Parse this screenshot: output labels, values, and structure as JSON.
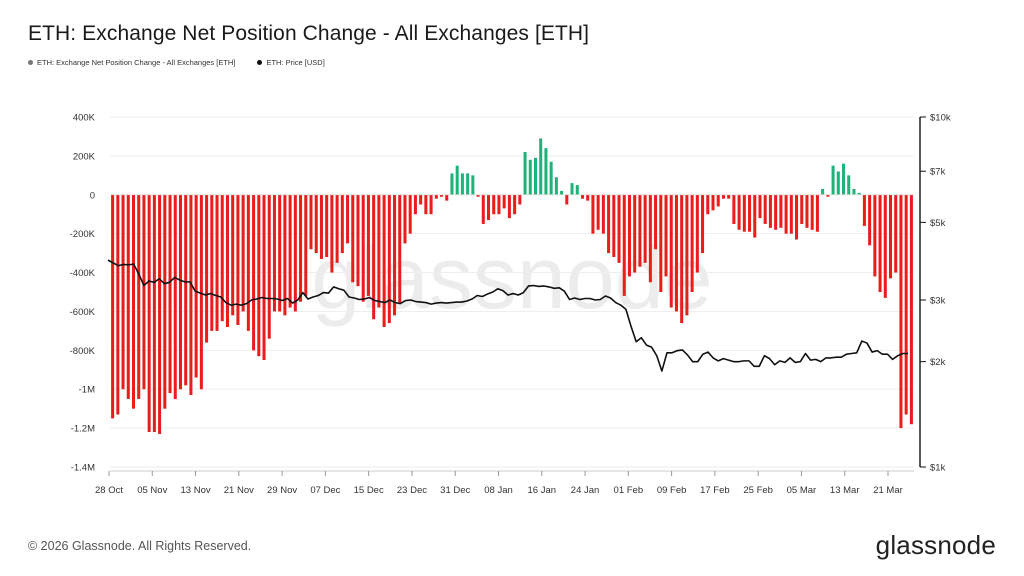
{
  "title": "ETH: Exchange Net Position Change - All Exchanges [ETH]",
  "legend": {
    "net_label": "ETH: Exchange Net Position Change - All Exchanges [ETH]",
    "price_label": "ETH: Price [USD]"
  },
  "footer": "© 2026 Glassnode. All Rights Reserved.",
  "logo": "glassnode",
  "watermark": "glassnode",
  "colors": {
    "positive": "#1fb37a",
    "negative": "#ea1d1d",
    "price_line": "#111111"
  },
  "chart_data": {
    "type": "bar",
    "title": "ETH: Exchange Net Position Change - All Exchanges [ETH]",
    "x_tick_labels": [
      "28 Oct",
      "05 Nov",
      "13 Nov",
      "21 Nov",
      "29 Nov",
      "07 Dec",
      "15 Dec",
      "23 Dec",
      "31 Dec",
      "08 Jan",
      "16 Jan",
      "24 Jan",
      "01 Feb",
      "09 Feb",
      "17 Feb",
      "25 Feb",
      "05 Mar",
      "13 Mar",
      "21 Mar"
    ],
    "y_left": {
      "ticks": [
        400000,
        200000,
        0,
        -200000,
        -400000,
        -600000,
        -800000,
        -1000000,
        -1200000,
        -1400000
      ],
      "tick_labels": [
        "400K",
        "200K",
        "0",
        "-200K",
        "-400K",
        "-600K",
        "-800K",
        "-1M",
        "-1.2M",
        "-1.4M"
      ],
      "range": [
        -1400000,
        400000
      ]
    },
    "y_right": {
      "scale": "log",
      "ticks": [
        1000,
        2000,
        3000,
        5000,
        7000,
        10000
      ],
      "tick_labels": [
        "$1k",
        "$2k",
        "$3k",
        "$5k",
        "$7k",
        "$10k"
      ],
      "range": [
        1000,
        10000
      ]
    },
    "grid": true,
    "legend_position": "top-left",
    "series": [
      {
        "name": "ETH: Exchange Net Position Change - All Exchanges [ETH]",
        "type": "bar",
        "values": [
          -1150000,
          -1130000,
          -1000000,
          -1050000,
          -1100000,
          -1050000,
          -1000000,
          -1220000,
          -1220000,
          -1230000,
          -1100000,
          -1020000,
          -1050000,
          -1000000,
          -980000,
          -1030000,
          -940000,
          -1000000,
          -760000,
          -700000,
          -700000,
          -650000,
          -680000,
          -620000,
          -670000,
          -600000,
          -700000,
          -800000,
          -830000,
          -850000,
          -740000,
          -600000,
          -600000,
          -620000,
          -580000,
          -600000,
          -550000,
          -520000,
          -280000,
          -300000,
          -330000,
          -320000,
          -400000,
          -350000,
          -300000,
          -250000,
          -450000,
          -470000,
          -550000,
          -520000,
          -640000,
          -580000,
          -680000,
          -660000,
          -620000,
          -560000,
          -250000,
          -200000,
          -100000,
          -50000,
          -100000,
          -100000,
          -20000,
          -10000,
          -30000,
          110000,
          150000,
          110000,
          110000,
          100000,
          -10000,
          -150000,
          -130000,
          -100000,
          -100000,
          -70000,
          -120000,
          -100000,
          -50000,
          220000,
          180000,
          190000,
          290000,
          240000,
          170000,
          90000,
          20000,
          -50000,
          60000,
          50000,
          -20000,
          -30000,
          -200000,
          -180000,
          -200000,
          -300000,
          -320000,
          -350000,
          -520000,
          -420000,
          -400000,
          -370000,
          -350000,
          -450000,
          -280000,
          -500000,
          -420000,
          -580000,
          -600000,
          -660000,
          -620000,
          -500000,
          -400000,
          -300000,
          -100000,
          -80000,
          -60000,
          -20000,
          -20000,
          -150000,
          -180000,
          -190000,
          -190000,
          -220000,
          -120000,
          -150000,
          -170000,
          -180000,
          -170000,
          -200000,
          -200000,
          -230000,
          -150000,
          -170000,
          -180000,
          -190000,
          30000,
          -10000,
          150000,
          120000,
          160000,
          100000,
          30000,
          10000,
          -160000,
          -260000,
          -420000,
          -500000,
          -530000,
          -430000,
          -400000,
          -1200000,
          -1130000,
          -1180000
        ]
      },
      {
        "name": "ETH: Price [USD]",
        "type": "line",
        "values": [
          3900,
          3830,
          3760,
          3790,
          3780,
          3800,
          3560,
          3300,
          3400,
          3370,
          3450,
          3340,
          3370,
          3480,
          3420,
          3380,
          3380,
          3180,
          3140,
          3100,
          3130,
          3090,
          3060,
          2950,
          2900,
          2920,
          2900,
          2930,
          3000,
          3020,
          3050,
          3030,
          3030,
          3020,
          2990,
          3030,
          2940,
          3000,
          3150,
          3020,
          3060,
          3090,
          3150,
          3140,
          3270,
          3230,
          3200,
          3060,
          3040,
          3010,
          3020,
          3050,
          2990,
          2970,
          2950,
          3000,
          2950,
          2930,
          2990,
          3000,
          2970,
          2960,
          2950,
          2920,
          2940,
          2950,
          2940,
          2950,
          2960,
          2960,
          2980,
          3020,
          3090,
          3070,
          3120,
          3160,
          3230,
          3190,
          3100,
          3130,
          3100,
          3150,
          3290,
          3300,
          3280,
          3290,
          3270,
          3240,
          3250,
          3180,
          3010,
          3040,
          3010,
          3030,
          3030,
          3000,
          3010,
          3080,
          3040,
          2950,
          2900,
          2820,
          2520,
          2280,
          2340,
          2230,
          2200,
          2080,
          1880,
          2120,
          2120,
          2150,
          2160,
          2090,
          2000,
          2000,
          2100,
          2130,
          2050,
          2010,
          2040,
          2020,
          2000,
          2000,
          2010,
          2010,
          1940,
          1940,
          2080,
          2040,
          1960,
          2010,
          1990,
          2050,
          1990,
          2000,
          2110,
          2020,
          2030,
          2000,
          2050,
          2050,
          2060,
          2060,
          2100,
          2110,
          2120,
          2290,
          2260,
          2130,
          2150,
          2100,
          2100,
          2030,
          2080,
          2110,
          2110
        ]
      }
    ]
  }
}
